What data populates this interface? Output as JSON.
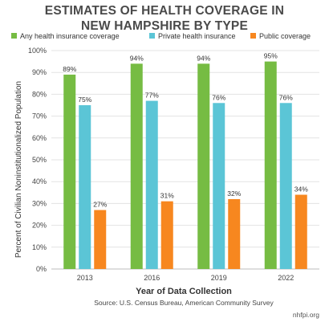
{
  "chart_data": {
    "type": "bar",
    "title_lines": [
      "ESTIMATES OF HEALTH COVERAGE IN",
      "NEW HAMPSHIRE BY TYPE"
    ],
    "xlabel": "Year of Data Collection",
    "ylabel": "Percent of Civilian Noninstitutionalized Population",
    "categories": [
      "2013",
      "2016",
      "2019",
      "2022"
    ],
    "ylim": [
      0,
      100
    ],
    "yticks": [
      "0%",
      "10%",
      "20%",
      "30%",
      "40%",
      "50%",
      "60%",
      "70%",
      "80%",
      "90%",
      "100%"
    ],
    "grid": true,
    "legend_position": "top",
    "series": [
      {
        "name": "Any health insurance coverage",
        "color": "#76bc43",
        "values": [
          89,
          94,
          94,
          95
        ],
        "labels": [
          "89%",
          "94%",
          "94%",
          "95%"
        ]
      },
      {
        "name": "Private health insurance",
        "color": "#5bc5d6",
        "values": [
          75,
          77,
          76,
          76
        ],
        "labels": [
          "75%",
          "77%",
          "76%",
          "76%"
        ]
      },
      {
        "name": "Public coverage",
        "color": "#f7871f",
        "values": [
          27,
          31,
          32,
          34
        ],
        "labels": [
          "27%",
          "31%",
          "32%",
          "34%"
        ]
      }
    ],
    "source": "Source: U.S. Census Bureau, American Community Survey",
    "credit": "nhfpi.org"
  }
}
